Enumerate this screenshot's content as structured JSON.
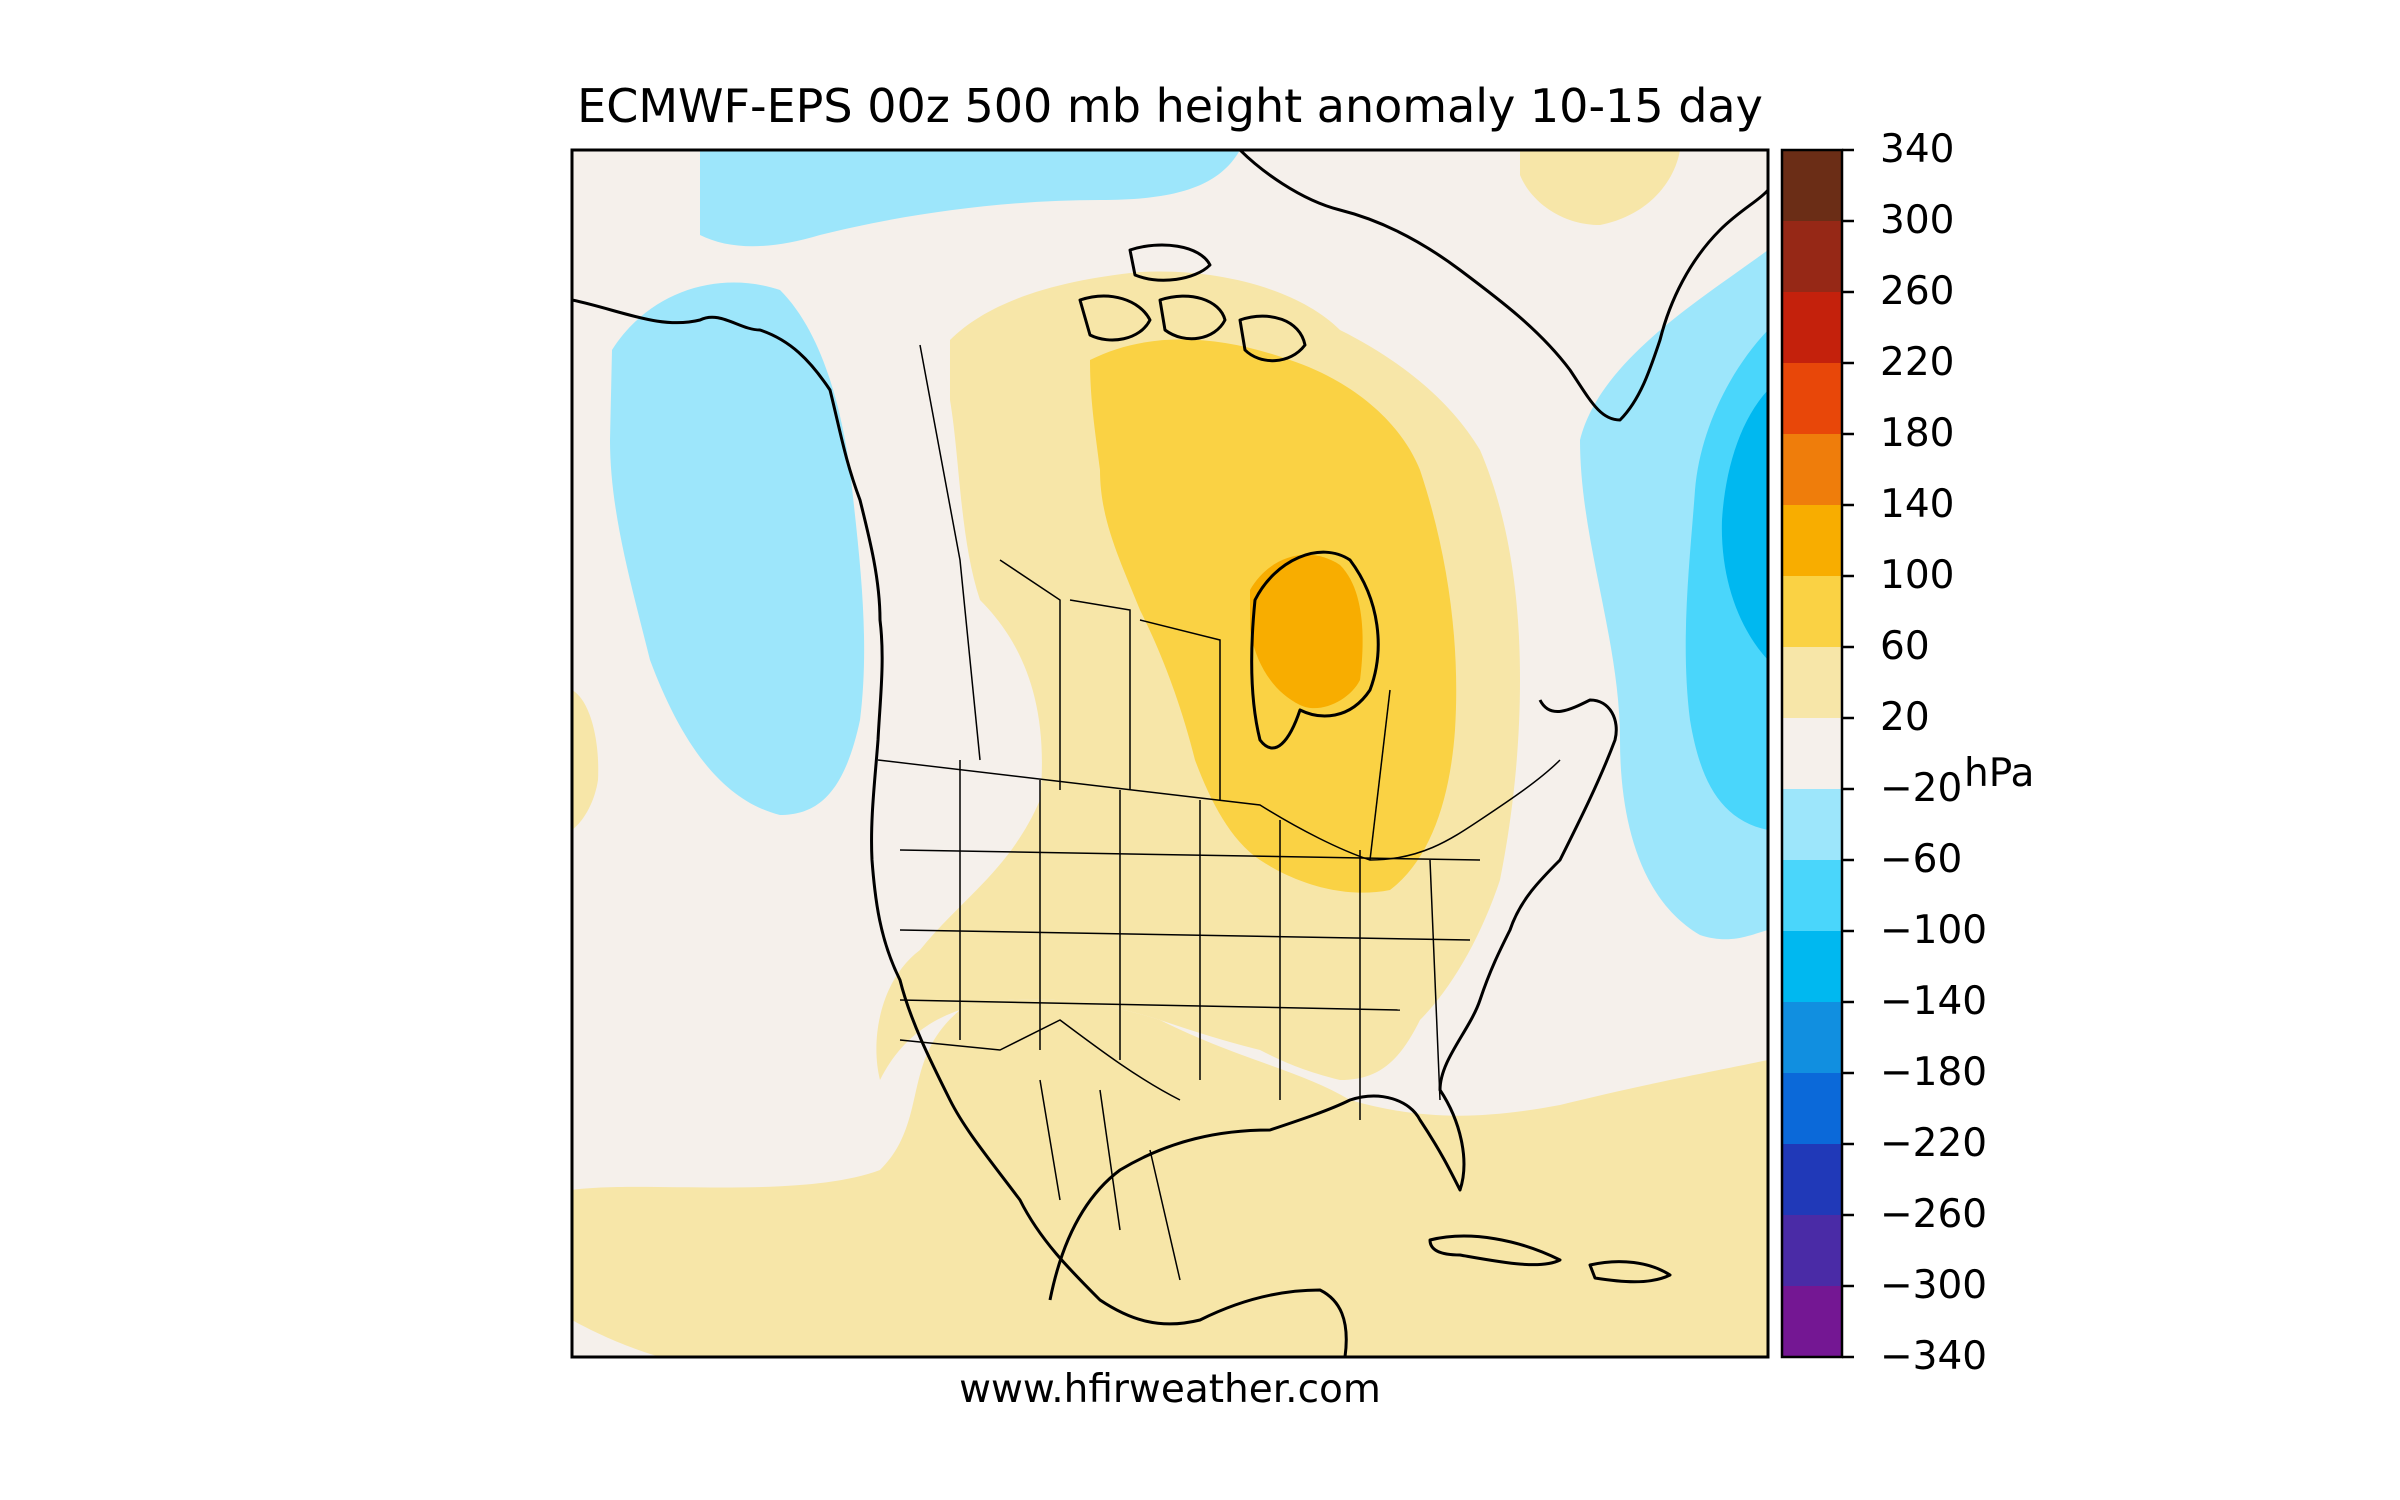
{
  "title": "ECMWF-EPS 00z 500 mb height anomaly 10-15 day",
  "credit": "www.hfirweather.com",
  "colorbar": {
    "unit": "hPa",
    "tick_labels": [
      "340",
      "300",
      "260",
      "220",
      "180",
      "140",
      "100",
      "60",
      "20",
      "−20",
      "−60",
      "−100",
      "−140",
      "−180",
      "−220",
      "−260",
      "−300",
      "−340"
    ],
    "levels_top_to_bottom": [
      340,
      300,
      260,
      220,
      180,
      140,
      100,
      60,
      20,
      -20,
      -60,
      -100,
      -140,
      -180,
      -220,
      -260,
      -300,
      -340
    ],
    "band_colors_top_to_bottom": [
      "#6b2d16",
      "#962816",
      "#c4210c",
      "#e84709",
      "#ef7d0b",
      "#f8ad00",
      "#fad244",
      "#f7e6a8",
      "#f5f0eb",
      "#9de6fb",
      "#4ad6fb",
      "#00b8f0",
      "#118fe0",
      "#0b69d9",
      "#2039b8",
      "#4a2ba6",
      "#741793"
    ]
  },
  "anomaly_colors": {
    "neutral": "#f5f0eb",
    "pos_20_60": "#f7e6a8",
    "pos_60_100": "#fad244",
    "pos_100_140": "#f8ad00",
    "neg_20_60": "#9de6fb",
    "neg_60_100": "#4ad6fb",
    "neg_100_140": "#00b8f0"
  }
}
